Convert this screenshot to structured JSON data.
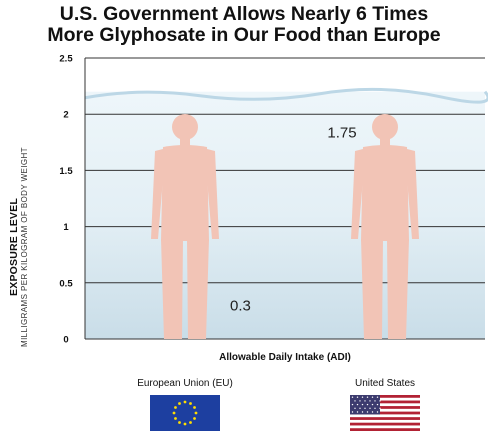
{
  "header": {
    "title_line1": "U.S. Government Allows Nearly 6 Times",
    "title_line2": "More Glyphosate in Our Food than Europe"
  },
  "axis": {
    "y_title": "EXPOSURE LEVEL",
    "y_subtitle": "MILLIGRAMS PER KILOGRAM OF BODY WEIGHT",
    "x_title": "Allowable Daily Intake (ADI)"
  },
  "legend": {
    "eu_label": "European Union (EU)",
    "us_label": "United States"
  },
  "colors": {
    "figure_empty": "#f2c4b6",
    "eu_fill": "#1d3182",
    "us_fill": "#c41e32",
    "water": "#dcebf3"
  },
  "icons": {
    "eu_flag": "eu-flag-icon",
    "us_flag": "us-flag-icon"
  },
  "chart_data": {
    "type": "bar",
    "categories": [
      "European Union (EU)",
      "United States"
    ],
    "values": [
      0.3,
      1.75
    ],
    "value_labels": [
      "0.3",
      "1.75"
    ],
    "ylim": [
      0,
      2.5
    ],
    "yticks": [
      "0",
      "0.5",
      "1",
      "1.5",
      "2",
      "2.5"
    ],
    "ytick_values": [
      0,
      0.5,
      1,
      1.5,
      2,
      2.5
    ],
    "grid": true,
    "title": "U.S. Government Allows Nearly 6 Times More Glyphosate in Our Food than Europe",
    "xlabel": "Allowable Daily Intake (ADI)",
    "ylabel": "EXPOSURE LEVEL MILLIGRAMS PER KILOGRAM OF BODY WEIGHT"
  }
}
